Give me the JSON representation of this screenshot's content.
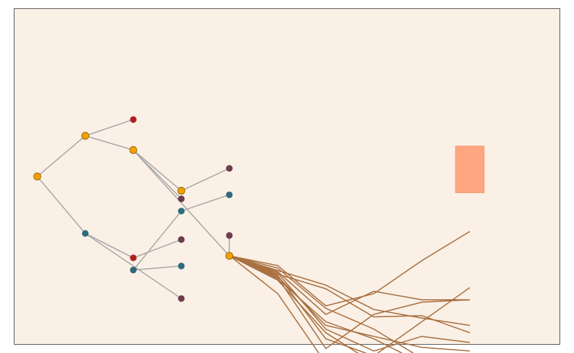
{
  "colors": {
    "background": "#faf0e6",
    "border": "#555555",
    "tree_edge": "#a9a9a9",
    "path_line": "#a97142",
    "highlight": "#ffa07a",
    "node_orange": "#f0a000",
    "node_red": "#b22222",
    "node_teal": "#2f6b7c",
    "node_plum": "#6b3e4e"
  },
  "tree": {
    "nodes": [
      {
        "id": "n0",
        "kind": "orange",
        "level": 0,
        "lane": 0.0
      },
      {
        "id": "n1",
        "kind": "orange",
        "level": 1,
        "lane": -1.0
      },
      {
        "id": "n2",
        "kind": "teal",
        "level": 1,
        "lane": 1.4
      },
      {
        "id": "n3",
        "kind": "red",
        "level": 2,
        "lane": -1.4
      },
      {
        "id": "n4",
        "kind": "orange",
        "level": 2,
        "lane": -0.65
      },
      {
        "id": "n5",
        "kind": "red",
        "level": 2,
        "lane": 2.0
      },
      {
        "id": "n6",
        "kind": "teal",
        "level": 2,
        "lane": 2.3
      },
      {
        "id": "n7",
        "kind": "orange",
        "level": 3,
        "lane": 0.35
      },
      {
        "id": "n8",
        "kind": "plum",
        "level": 3,
        "lane": 0.55
      },
      {
        "id": "n9",
        "kind": "teal",
        "level": 3,
        "lane": 0.85
      },
      {
        "id": "n10",
        "kind": "plum",
        "level": 3,
        "lane": 1.55
      },
      {
        "id": "n11",
        "kind": "teal",
        "level": 3,
        "lane": 2.2
      },
      {
        "id": "n12",
        "kind": "plum",
        "level": 3,
        "lane": 3.0
      },
      {
        "id": "n13",
        "kind": "plum",
        "level": 4,
        "lane": -0.2
      },
      {
        "id": "n14",
        "kind": "teal",
        "level": 4,
        "lane": 0.45
      },
      {
        "id": "n15",
        "kind": "plum",
        "level": 4,
        "lane": 1.45
      },
      {
        "id": "n16",
        "kind": "orange",
        "level": 4,
        "lane": 1.95
      }
    ],
    "edges": [
      [
        "n0",
        "n1"
      ],
      [
        "n0",
        "n2"
      ],
      [
        "n1",
        "n3"
      ],
      [
        "n1",
        "n4"
      ],
      [
        "n2",
        "n5"
      ],
      [
        "n2",
        "n12"
      ],
      [
        "n4",
        "n7"
      ],
      [
        "n4",
        "n8"
      ],
      [
        "n4",
        "n16"
      ],
      [
        "n7",
        "n13"
      ],
      [
        "n9",
        "n14"
      ],
      [
        "n9",
        "n6"
      ],
      [
        "n5",
        "n10"
      ],
      [
        "n6",
        "n11"
      ],
      [
        "n16",
        "n15"
      ]
    ]
  },
  "paths": {
    "origin": "n16",
    "steps": 6,
    "lines": [
      [
        0.0,
        0.4,
        2.05,
        1.55,
        0.2,
        -1.0
      ],
      [
        0.0,
        0.6,
        1.2,
        2.2,
        2.55,
        2.85
      ],
      [
        0.0,
        0.75,
        1.35,
        2.5,
        2.45,
        3.15
      ],
      [
        0.0,
        0.85,
        2.85,
        3.3,
        3.75,
        3.9
      ],
      [
        0.0,
        0.5,
        2.15,
        3.0,
        4.2,
        4.2
      ],
      [
        0.0,
        0.95,
        2.7,
        3.4,
        4.4,
        4.4
      ],
      [
        0.0,
        1.0,
        3.15,
        4.4,
        4.4,
        4.4
      ],
      [
        0.0,
        1.55,
        4.4,
        4.4,
        4.4,
        4.4
      ],
      [
        0.0,
        0.7,
        3.0,
        3.9,
        3.3,
        3.55
      ],
      [
        0.0,
        0.8,
        3.4,
        4.1,
        2.7,
        1.3
      ],
      [
        0.0,
        0.9,
        3.8,
        2.4,
        1.9,
        1.8
      ],
      [
        0.0,
        0.65,
        2.4,
        1.45,
        1.8,
        1.8
      ]
    ]
  },
  "highlight_box": {
    "step_from": 4.7,
    "step_to": 5.3,
    "lane_from": -0.75,
    "lane_to": 0.4
  }
}
